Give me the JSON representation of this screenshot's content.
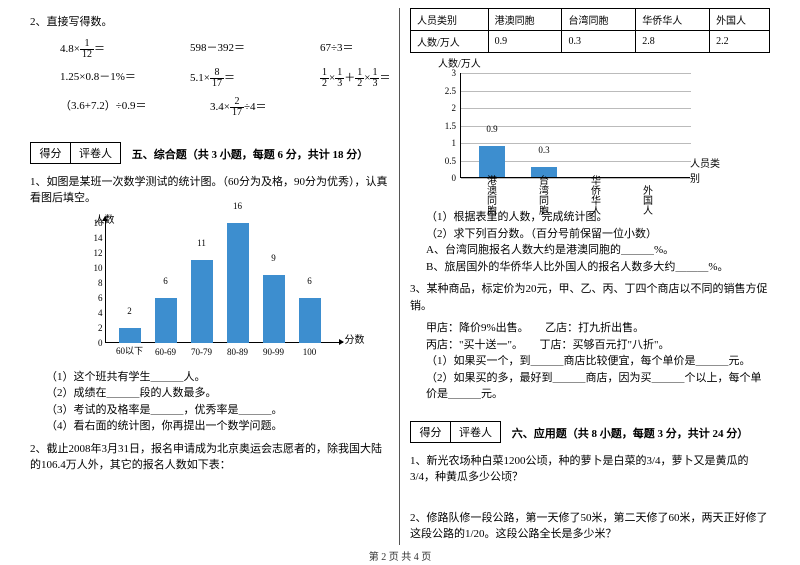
{
  "left": {
    "q2": "2、直接写得数。",
    "exprs_r1": [
      "4.8×",
      "598－392＝",
      "67÷3＝"
    ],
    "frac1": {
      "n": "1",
      "d": "12"
    },
    "exprs_r2": [
      "1.25×0.8－1%＝",
      "5.1×"
    ],
    "frac2": {
      "n": "8",
      "d": "17"
    },
    "expr_r2c": "＝",
    "frac3a": {
      "n": "1",
      "d": "2"
    },
    "frac3b": {
      "n": "1",
      "d": "3"
    },
    "frac3c": {
      "n": "1",
      "d": "2"
    },
    "frac3d": {
      "n": "1",
      "d": "3"
    },
    "exprs_r3": [
      "（3.6+7.2）÷0.9＝",
      "3.4×"
    ],
    "frac4": {
      "n": "2",
      "d": "17"
    },
    "expr_r3c": "÷4＝",
    "score": {
      "a": "得分",
      "b": "评卷人"
    },
    "sec5": "五、综合题（共 3 小题，每题 6 分，共计 18 分）",
    "q5_1": "1、如图是某班一次数学测试的统计图。（60分为及格，90分为优秀），认真看图后填空。",
    "chart1": {
      "ylabel": "人数",
      "type": "bar",
      "xlim": [
        0,
        6
      ],
      "ylim": [
        0,
        16
      ],
      "ytick_step": 2,
      "yticks": [
        0,
        2,
        4,
        6,
        8,
        10,
        12,
        14,
        16
      ],
      "cats": [
        "60以下",
        "60-69",
        "70-79",
        "80-89",
        "90-99",
        "100"
      ],
      "values": [
        2,
        6,
        11,
        16,
        9,
        6
      ],
      "bar_color": "#3d8ecf",
      "axis_color": "#000000",
      "xlabel": "分数"
    },
    "s1": "（1）这个班共有学生＿＿＿人。",
    "s2": "（2）成绩在＿＿＿段的人数最多。",
    "s3": "（3）考试的及格率是＿＿＿，优秀率是＿＿＿。",
    "s4": "（4）看右面的统计图，你再提出一个数学问题。",
    "q5_2": "2、截止2008年3月31日，报名申请成为北京奥运会志愿者的，除我国大陆的106.4万人外，其它的报名人数如下表：",
    "footer": "第 2 页 共 4 页"
  },
  "right": {
    "table": {
      "headers": [
        "人员类别",
        "港澳同胞",
        "台湾同胞",
        "华侨华人",
        "外国人"
      ],
      "row": [
        "人数/万人",
        "0.9",
        "0.3",
        "2.8",
        "2.2"
      ]
    },
    "chart2": {
      "ylabel": "人数/万人",
      "type": "bar",
      "ylim": [
        0,
        3
      ],
      "ytick_step": 0.5,
      "yticks": [
        "0",
        "0.5",
        "1",
        "1.5",
        "2",
        "2.5",
        "3"
      ],
      "cats": [
        "港澳同胞",
        "台湾同胞",
        "华侨华人",
        "外国人"
      ],
      "shown_values": [
        0.9,
        0.3
      ],
      "bar_color": "#3d8ecf",
      "grid_color": "#bbbbbb",
      "xlabel": "人员类别"
    },
    "s1": "（1）根据表里的人数，完成统计图。",
    "s2": "（2）求下列百分数。（百分号前保留一位小数）",
    "sA": "A、台湾同胞报名人数大约是港澳同胞的＿＿＿%。",
    "sB": "B、旅居国外的华侨华人比外国人的报名人数多大约＿＿＿%。",
    "q3": "3、某种商品，标定价为20元，甲、乙、丙、丁四个商店以不同的销售方促销。",
    "q3a": "甲店：降价9%出售。　　乙店：打九折出售。",
    "q3b": "丙店：\"买十送一\"。　　丁店：买够百元打\"八折\"。",
    "q3_1": "（1）如果买一个，到＿＿＿商店比较便宜，每个单价是＿＿＿元。",
    "q3_2": "（2）如果买的多，最好到＿＿＿商店，因为买＿＿＿个以上，每个单价是＿＿＿元。",
    "score": {
      "a": "得分",
      "b": "评卷人"
    },
    "sec6": "六、应用题（共 8 小题，每题 3 分，共计 24 分）",
    "q6_1": "1、新光农场种白菜1200公顷，种的萝卜是白菜的3/4，萝卜又是黄瓜的3/4，种黄瓜多少公顷？",
    "q6_2": "2、修路队修一段公路，第一天修了50米，第二天修了60米，两天正好修了这段公路的1/20。这段公路全长是多少米？"
  }
}
